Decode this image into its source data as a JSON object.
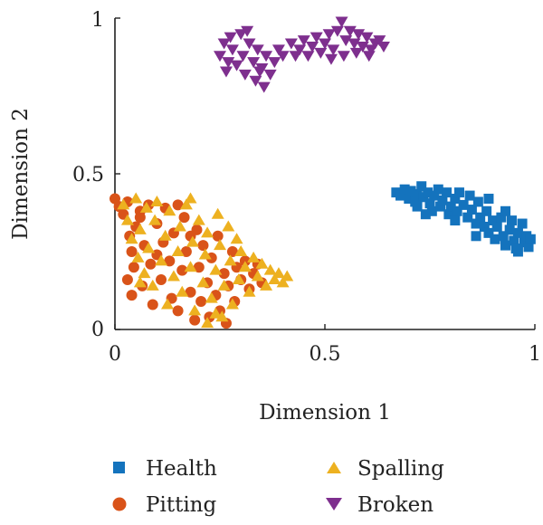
{
  "chart_data": {
    "type": "scatter",
    "title": "",
    "xlabel": "Dimension 1",
    "ylabel": "Dimension 2",
    "xlim": [
      0,
      1
    ],
    "ylim": [
      0,
      1
    ],
    "x_ticks": [
      "0",
      "0.5",
      "1"
    ],
    "y_ticks": [
      "0",
      "0.5",
      "1"
    ],
    "grid": false,
    "legend_position": "bottom",
    "series": [
      {
        "name": "Health",
        "marker": "square",
        "color": "#1473bd",
        "points": [
          [
            0.67,
            0.44
          ],
          [
            0.68,
            0.43
          ],
          [
            0.69,
            0.45
          ],
          [
            0.7,
            0.42
          ],
          [
            0.705,
            0.445
          ],
          [
            0.715,
            0.41
          ],
          [
            0.72,
            0.435
          ],
          [
            0.73,
            0.46
          ],
          [
            0.735,
            0.425
          ],
          [
            0.745,
            0.44
          ],
          [
            0.75,
            0.405
          ],
          [
            0.755,
            0.38
          ],
          [
            0.76,
            0.43
          ],
          [
            0.77,
            0.45
          ],
          [
            0.775,
            0.395
          ],
          [
            0.78,
            0.415
          ],
          [
            0.79,
            0.44
          ],
          [
            0.795,
            0.37
          ],
          [
            0.8,
            0.395
          ],
          [
            0.81,
            0.42
          ],
          [
            0.815,
            0.38
          ],
          [
            0.82,
            0.44
          ],
          [
            0.83,
            0.4
          ],
          [
            0.84,
            0.36
          ],
          [
            0.845,
            0.43
          ],
          [
            0.85,
            0.385
          ],
          [
            0.86,
            0.34
          ],
          [
            0.865,
            0.41
          ],
          [
            0.87,
            0.36
          ],
          [
            0.88,
            0.33
          ],
          [
            0.885,
            0.38
          ],
          [
            0.89,
            0.31
          ],
          [
            0.9,
            0.35
          ],
          [
            0.905,
            0.29
          ],
          [
            0.91,
            0.33
          ],
          [
            0.92,
            0.36
          ],
          [
            0.925,
            0.3
          ],
          [
            0.93,
            0.27
          ],
          [
            0.94,
            0.32
          ],
          [
            0.945,
            0.35
          ],
          [
            0.95,
            0.285
          ],
          [
            0.955,
            0.26
          ],
          [
            0.96,
            0.31
          ],
          [
            0.97,
            0.34
          ],
          [
            0.975,
            0.28
          ],
          [
            0.98,
            0.3
          ],
          [
            0.985,
            0.265
          ],
          [
            0.99,
            0.29
          ],
          [
            0.89,
            0.42
          ],
          [
            0.86,
            0.3
          ],
          [
            0.74,
            0.37
          ],
          [
            0.72,
            0.395
          ],
          [
            0.81,
            0.35
          ],
          [
            0.93,
            0.38
          ],
          [
            0.96,
            0.25
          ]
        ]
      },
      {
        "name": "Pitting",
        "marker": "circle",
        "color": "#d95319",
        "points": [
          [
            0.0,
            0.42
          ],
          [
            0.01,
            0.395
          ],
          [
            0.02,
            0.37
          ],
          [
            0.03,
            0.41
          ],
          [
            0.035,
            0.3
          ],
          [
            0.04,
            0.25
          ],
          [
            0.03,
            0.16
          ],
          [
            0.04,
            0.11
          ],
          [
            0.045,
            0.2
          ],
          [
            0.05,
            0.33
          ],
          [
            0.06,
            0.38
          ],
          [
            0.065,
            0.14
          ],
          [
            0.07,
            0.27
          ],
          [
            0.08,
            0.4
          ],
          [
            0.085,
            0.21
          ],
          [
            0.09,
            0.08
          ],
          [
            0.1,
            0.34
          ],
          [
            0.11,
            0.16
          ],
          [
            0.115,
            0.28
          ],
          [
            0.12,
            0.39
          ],
          [
            0.13,
            0.22
          ],
          [
            0.135,
            0.1
          ],
          [
            0.14,
            0.31
          ],
          [
            0.15,
            0.06
          ],
          [
            0.16,
            0.19
          ],
          [
            0.165,
            0.36
          ],
          [
            0.17,
            0.25
          ],
          [
            0.18,
            0.12
          ],
          [
            0.19,
            0.03
          ],
          [
            0.195,
            0.32
          ],
          [
            0.2,
            0.2
          ],
          [
            0.205,
            0.09
          ],
          [
            0.21,
            0.27
          ],
          [
            0.22,
            0.15
          ],
          [
            0.225,
            0.04
          ],
          [
            0.23,
            0.23
          ],
          [
            0.24,
            0.11
          ],
          [
            0.245,
            0.3
          ],
          [
            0.25,
            0.06
          ],
          [
            0.26,
            0.18
          ],
          [
            0.265,
            0.02
          ],
          [
            0.27,
            0.14
          ],
          [
            0.28,
            0.25
          ],
          [
            0.285,
            0.09
          ],
          [
            0.29,
            0.2
          ],
          [
            0.3,
            0.16
          ],
          [
            0.31,
            0.22
          ],
          [
            0.32,
            0.13
          ],
          [
            0.33,
            0.18
          ],
          [
            0.34,
            0.21
          ],
          [
            0.35,
            0.15
          ],
          [
            0.18,
            0.3
          ],
          [
            0.1,
            0.24
          ],
          [
            0.06,
            0.36
          ],
          [
            0.15,
            0.4
          ]
        ]
      },
      {
        "name": "Spalling",
        "marker": "triangle-up",
        "color": "#edb120",
        "points": [
          [
            0.02,
            0.4
          ],
          [
            0.03,
            0.35
          ],
          [
            0.04,
            0.29
          ],
          [
            0.05,
            0.42
          ],
          [
            0.055,
            0.23
          ],
          [
            0.06,
            0.32
          ],
          [
            0.07,
            0.18
          ],
          [
            0.075,
            0.39
          ],
          [
            0.08,
            0.26
          ],
          [
            0.09,
            0.14
          ],
          [
            0.095,
            0.35
          ],
          [
            0.1,
            0.41
          ],
          [
            0.11,
            0.22
          ],
          [
            0.12,
            0.3
          ],
          [
            0.125,
            0.08
          ],
          [
            0.13,
            0.38
          ],
          [
            0.14,
            0.17
          ],
          [
            0.15,
            0.25
          ],
          [
            0.155,
            0.33
          ],
          [
            0.16,
            0.12
          ],
          [
            0.17,
            0.4
          ],
          [
            0.18,
            0.2
          ],
          [
            0.185,
            0.28
          ],
          [
            0.19,
            0.06
          ],
          [
            0.2,
            0.35
          ],
          [
            0.21,
            0.15
          ],
          [
            0.215,
            0.24
          ],
          [
            0.22,
            0.31
          ],
          [
            0.23,
            0.1
          ],
          [
            0.24,
            0.19
          ],
          [
            0.245,
            0.37
          ],
          [
            0.25,
            0.27
          ],
          [
            0.255,
            0.04
          ],
          [
            0.26,
            0.14
          ],
          [
            0.27,
            0.33
          ],
          [
            0.275,
            0.22
          ],
          [
            0.28,
            0.08
          ],
          [
            0.29,
            0.29
          ],
          [
            0.295,
            0.16
          ],
          [
            0.3,
            0.25
          ],
          [
            0.31,
            0.2
          ],
          [
            0.32,
            0.12
          ],
          [
            0.33,
            0.23
          ],
          [
            0.34,
            0.17
          ],
          [
            0.35,
            0.21
          ],
          [
            0.36,
            0.14
          ],
          [
            0.37,
            0.19
          ],
          [
            0.38,
            0.16
          ],
          [
            0.39,
            0.18
          ],
          [
            0.4,
            0.15
          ],
          [
            0.41,
            0.17
          ],
          [
            0.22,
            0.02
          ],
          [
            0.24,
            0.05
          ],
          [
            0.06,
            0.15
          ],
          [
            0.18,
            0.42
          ]
        ]
      },
      {
        "name": "Broken",
        "marker": "triangle-down",
        "color": "#7e2f8e",
        "points": [
          [
            0.25,
            0.88
          ],
          [
            0.26,
            0.92
          ],
          [
            0.27,
            0.86
          ],
          [
            0.275,
            0.94
          ],
          [
            0.28,
            0.9
          ],
          [
            0.29,
            0.85
          ],
          [
            0.3,
            0.95
          ],
          [
            0.305,
            0.88
          ],
          [
            0.31,
            0.82
          ],
          [
            0.32,
            0.92
          ],
          [
            0.33,
            0.86
          ],
          [
            0.335,
            0.8
          ],
          [
            0.34,
            0.9
          ],
          [
            0.35,
            0.84
          ],
          [
            0.355,
            0.78
          ],
          [
            0.36,
            0.88
          ],
          [
            0.37,
            0.82
          ],
          [
            0.38,
            0.86
          ],
          [
            0.39,
            0.9
          ],
          [
            0.4,
            0.88
          ],
          [
            0.42,
            0.92
          ],
          [
            0.43,
            0.88
          ],
          [
            0.44,
            0.9
          ],
          [
            0.45,
            0.93
          ],
          [
            0.46,
            0.88
          ],
          [
            0.47,
            0.91
          ],
          [
            0.48,
            0.94
          ],
          [
            0.49,
            0.89
          ],
          [
            0.5,
            0.92
          ],
          [
            0.51,
            0.95
          ],
          [
            0.52,
            0.9
          ],
          [
            0.53,
            0.96
          ],
          [
            0.54,
            0.99
          ],
          [
            0.55,
            0.93
          ],
          [
            0.56,
            0.96
          ],
          [
            0.57,
            0.92
          ],
          [
            0.58,
            0.95
          ],
          [
            0.59,
            0.91
          ],
          [
            0.6,
            0.94
          ],
          [
            0.61,
            0.9
          ],
          [
            0.62,
            0.92
          ],
          [
            0.63,
            0.93
          ],
          [
            0.64,
            0.91
          ],
          [
            0.265,
            0.83
          ],
          [
            0.315,
            0.96
          ],
          [
            0.345,
            0.83
          ],
          [
            0.545,
            0.88
          ],
          [
            0.575,
            0.89
          ],
          [
            0.515,
            0.87
          ],
          [
            0.605,
            0.88
          ]
        ]
      }
    ]
  }
}
